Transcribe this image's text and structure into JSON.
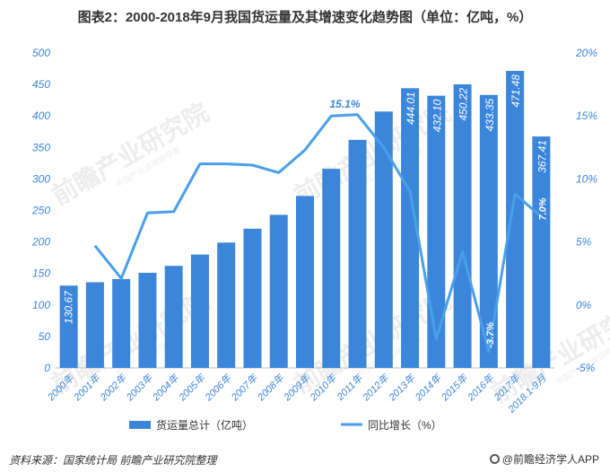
{
  "chart_data": {
    "type": "bar",
    "title": "图表2：2000-2018年9月我国货运量及其增速变化趋势图（单位：亿吨，%）",
    "categories": [
      "2000年",
      "2001年",
      "2002年",
      "2003年",
      "2004年",
      "2005年",
      "2006年",
      "2007年",
      "2008年",
      "2009年",
      "2010年",
      "2011年",
      "2012年",
      "2013年",
      "2014年",
      "2015年",
      "2016年",
      "2017年",
      "2018.1-9月"
    ],
    "series": [
      {
        "name": "货运量总计（亿吨）",
        "kind": "bar",
        "axis": "left",
        "color": "#3b86db",
        "values": [
          130.67,
          136,
          141,
          151,
          162,
          180,
          199,
          221,
          243,
          273,
          316,
          362,
          407,
          444.01,
          432.1,
          450.22,
          433.35,
          471.48,
          367.41
        ],
        "labels": [
          "130.67",
          "",
          "",
          "",
          "",
          "",
          "",
          "",
          "",
          "",
          "",
          "",
          "",
          "444.01",
          "432.10",
          "450.22",
          "433.35",
          "471.48",
          "367.41"
        ]
      },
      {
        "name": "同比增长（%）",
        "kind": "line",
        "axis": "right",
        "color": "#4a9fe8",
        "values": [
          null,
          4.7,
          2.1,
          7.3,
          7.4,
          11.2,
          11.2,
          11.1,
          10.5,
          12.3,
          15.0,
          15.1,
          12.5,
          9.0,
          -2.7,
          4.2,
          -3.7,
          8.8,
          7.0
        ],
        "labels": [
          "",
          "",
          "",
          "",
          "",
          "",
          "",
          "",
          "",
          "",
          "",
          "15.1%",
          "",
          "",
          "",
          "",
          "-3.7%",
          "",
          "7.0%"
        ]
      }
    ],
    "y_left": {
      "lim": [
        0,
        500
      ],
      "ticks": [
        "0",
        "50",
        "100",
        "150",
        "200",
        "250",
        "300",
        "350",
        "400",
        "450",
        "500"
      ]
    },
    "y_right": {
      "lim": [
        -5,
        20
      ],
      "ticks": [
        "-5%",
        "0%",
        "5%",
        "10%",
        "15%",
        "20%"
      ]
    },
    "grid": false,
    "legend_position": "bottom"
  },
  "footer": {
    "source": "资料来源：国家统计局 前瞻产业研究院整理",
    "brand": "@前瞻经济学人APP"
  },
  "watermark": {
    "text": "前瞻产业研究院",
    "subtext": "中国产业咨询领导者"
  },
  "colors": {
    "bar": "#3b86db",
    "line": "#4a9fe8",
    "axis_text": "#3b86db"
  }
}
